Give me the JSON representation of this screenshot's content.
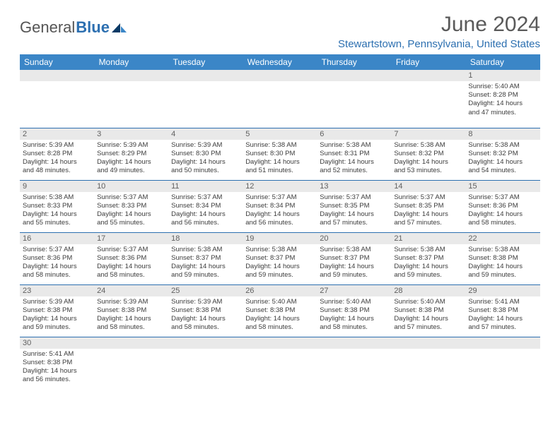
{
  "logo": {
    "text_gray": "General",
    "text_blue": "Blue"
  },
  "header": {
    "month_title": "June 2024",
    "location": "Stewartstown, Pennsylvania, United States"
  },
  "colors": {
    "header_bg": "#3b86c7",
    "header_text": "#ffffff",
    "daynum_bg": "#e9e9e9",
    "rule": "#2c6fb0",
    "brand_blue": "#2c6fb0",
    "brand_dark": "#0a3a66"
  },
  "day_headers": [
    "Sunday",
    "Monday",
    "Tuesday",
    "Wednesday",
    "Thursday",
    "Friday",
    "Saturday"
  ],
  "weeks": [
    [
      {
        "n": "",
        "sr": "",
        "ss": "",
        "d1": "",
        "d2": ""
      },
      {
        "n": "",
        "sr": "",
        "ss": "",
        "d1": "",
        "d2": ""
      },
      {
        "n": "",
        "sr": "",
        "ss": "",
        "d1": "",
        "d2": ""
      },
      {
        "n": "",
        "sr": "",
        "ss": "",
        "d1": "",
        "d2": ""
      },
      {
        "n": "",
        "sr": "",
        "ss": "",
        "d1": "",
        "d2": ""
      },
      {
        "n": "",
        "sr": "",
        "ss": "",
        "d1": "",
        "d2": ""
      },
      {
        "n": "1",
        "sr": "Sunrise: 5:40 AM",
        "ss": "Sunset: 8:28 PM",
        "d1": "Daylight: 14 hours",
        "d2": "and 47 minutes."
      }
    ],
    [
      {
        "n": "2",
        "sr": "Sunrise: 5:39 AM",
        "ss": "Sunset: 8:28 PM",
        "d1": "Daylight: 14 hours",
        "d2": "and 48 minutes."
      },
      {
        "n": "3",
        "sr": "Sunrise: 5:39 AM",
        "ss": "Sunset: 8:29 PM",
        "d1": "Daylight: 14 hours",
        "d2": "and 49 minutes."
      },
      {
        "n": "4",
        "sr": "Sunrise: 5:39 AM",
        "ss": "Sunset: 8:30 PM",
        "d1": "Daylight: 14 hours",
        "d2": "and 50 minutes."
      },
      {
        "n": "5",
        "sr": "Sunrise: 5:38 AM",
        "ss": "Sunset: 8:30 PM",
        "d1": "Daylight: 14 hours",
        "d2": "and 51 minutes."
      },
      {
        "n": "6",
        "sr": "Sunrise: 5:38 AM",
        "ss": "Sunset: 8:31 PM",
        "d1": "Daylight: 14 hours",
        "d2": "and 52 minutes."
      },
      {
        "n": "7",
        "sr": "Sunrise: 5:38 AM",
        "ss": "Sunset: 8:32 PM",
        "d1": "Daylight: 14 hours",
        "d2": "and 53 minutes."
      },
      {
        "n": "8",
        "sr": "Sunrise: 5:38 AM",
        "ss": "Sunset: 8:32 PM",
        "d1": "Daylight: 14 hours",
        "d2": "and 54 minutes."
      }
    ],
    [
      {
        "n": "9",
        "sr": "Sunrise: 5:38 AM",
        "ss": "Sunset: 8:33 PM",
        "d1": "Daylight: 14 hours",
        "d2": "and 55 minutes."
      },
      {
        "n": "10",
        "sr": "Sunrise: 5:37 AM",
        "ss": "Sunset: 8:33 PM",
        "d1": "Daylight: 14 hours",
        "d2": "and 55 minutes."
      },
      {
        "n": "11",
        "sr": "Sunrise: 5:37 AM",
        "ss": "Sunset: 8:34 PM",
        "d1": "Daylight: 14 hours",
        "d2": "and 56 minutes."
      },
      {
        "n": "12",
        "sr": "Sunrise: 5:37 AM",
        "ss": "Sunset: 8:34 PM",
        "d1": "Daylight: 14 hours",
        "d2": "and 56 minutes."
      },
      {
        "n": "13",
        "sr": "Sunrise: 5:37 AM",
        "ss": "Sunset: 8:35 PM",
        "d1": "Daylight: 14 hours",
        "d2": "and 57 minutes."
      },
      {
        "n": "14",
        "sr": "Sunrise: 5:37 AM",
        "ss": "Sunset: 8:35 PM",
        "d1": "Daylight: 14 hours",
        "d2": "and 57 minutes."
      },
      {
        "n": "15",
        "sr": "Sunrise: 5:37 AM",
        "ss": "Sunset: 8:36 PM",
        "d1": "Daylight: 14 hours",
        "d2": "and 58 minutes."
      }
    ],
    [
      {
        "n": "16",
        "sr": "Sunrise: 5:37 AM",
        "ss": "Sunset: 8:36 PM",
        "d1": "Daylight: 14 hours",
        "d2": "and 58 minutes."
      },
      {
        "n": "17",
        "sr": "Sunrise: 5:37 AM",
        "ss": "Sunset: 8:36 PM",
        "d1": "Daylight: 14 hours",
        "d2": "and 58 minutes."
      },
      {
        "n": "18",
        "sr": "Sunrise: 5:38 AM",
        "ss": "Sunset: 8:37 PM",
        "d1": "Daylight: 14 hours",
        "d2": "and 59 minutes."
      },
      {
        "n": "19",
        "sr": "Sunrise: 5:38 AM",
        "ss": "Sunset: 8:37 PM",
        "d1": "Daylight: 14 hours",
        "d2": "and 59 minutes."
      },
      {
        "n": "20",
        "sr": "Sunrise: 5:38 AM",
        "ss": "Sunset: 8:37 PM",
        "d1": "Daylight: 14 hours",
        "d2": "and 59 minutes."
      },
      {
        "n": "21",
        "sr": "Sunrise: 5:38 AM",
        "ss": "Sunset: 8:37 PM",
        "d1": "Daylight: 14 hours",
        "d2": "and 59 minutes."
      },
      {
        "n": "22",
        "sr": "Sunrise: 5:38 AM",
        "ss": "Sunset: 8:38 PM",
        "d1": "Daylight: 14 hours",
        "d2": "and 59 minutes."
      }
    ],
    [
      {
        "n": "23",
        "sr": "Sunrise: 5:39 AM",
        "ss": "Sunset: 8:38 PM",
        "d1": "Daylight: 14 hours",
        "d2": "and 59 minutes."
      },
      {
        "n": "24",
        "sr": "Sunrise: 5:39 AM",
        "ss": "Sunset: 8:38 PM",
        "d1": "Daylight: 14 hours",
        "d2": "and 58 minutes."
      },
      {
        "n": "25",
        "sr": "Sunrise: 5:39 AM",
        "ss": "Sunset: 8:38 PM",
        "d1": "Daylight: 14 hours",
        "d2": "and 58 minutes."
      },
      {
        "n": "26",
        "sr": "Sunrise: 5:40 AM",
        "ss": "Sunset: 8:38 PM",
        "d1": "Daylight: 14 hours",
        "d2": "and 58 minutes."
      },
      {
        "n": "27",
        "sr": "Sunrise: 5:40 AM",
        "ss": "Sunset: 8:38 PM",
        "d1": "Daylight: 14 hours",
        "d2": "and 58 minutes."
      },
      {
        "n": "28",
        "sr": "Sunrise: 5:40 AM",
        "ss": "Sunset: 8:38 PM",
        "d1": "Daylight: 14 hours",
        "d2": "and 57 minutes."
      },
      {
        "n": "29",
        "sr": "Sunrise: 5:41 AM",
        "ss": "Sunset: 8:38 PM",
        "d1": "Daylight: 14 hours",
        "d2": "and 57 minutes."
      }
    ],
    [
      {
        "n": "30",
        "sr": "Sunrise: 5:41 AM",
        "ss": "Sunset: 8:38 PM",
        "d1": "Daylight: 14 hours",
        "d2": "and 56 minutes."
      },
      {
        "n": "",
        "sr": "",
        "ss": "",
        "d1": "",
        "d2": ""
      },
      {
        "n": "",
        "sr": "",
        "ss": "",
        "d1": "",
        "d2": ""
      },
      {
        "n": "",
        "sr": "",
        "ss": "",
        "d1": "",
        "d2": ""
      },
      {
        "n": "",
        "sr": "",
        "ss": "",
        "d1": "",
        "d2": ""
      },
      {
        "n": "",
        "sr": "",
        "ss": "",
        "d1": "",
        "d2": ""
      },
      {
        "n": "",
        "sr": "",
        "ss": "",
        "d1": "",
        "d2": ""
      }
    ]
  ]
}
